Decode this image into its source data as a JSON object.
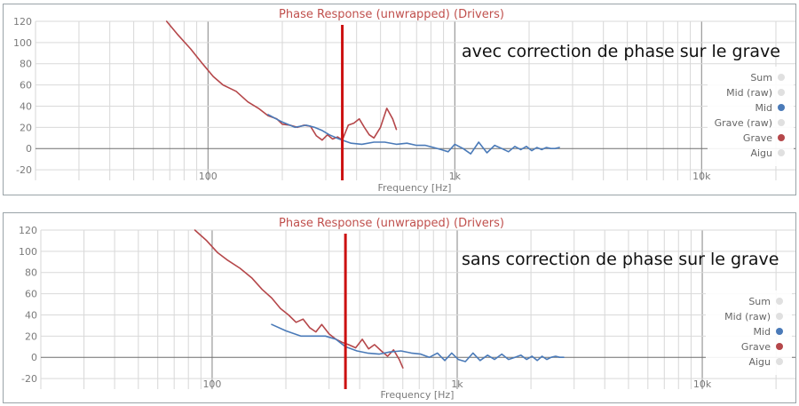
{
  "chart_data": [
    {
      "type": "line",
      "title": "Phase Response (unwrapped) (Drivers)",
      "xlabel": "Frequency [Hz]",
      "ylabel": "",
      "x_scale": "log",
      "xlim": [
        20,
        24000
      ],
      "ylim": [
        -30,
        120
      ],
      "x_ticks": [
        {
          "value": 100,
          "label": "100"
        },
        {
          "value": 1000,
          "label": "1k"
        },
        {
          "value": 10000,
          "label": "10k"
        }
      ],
      "y_ticks": [
        -20,
        0,
        20,
        40,
        60,
        80,
        100,
        120
      ],
      "grid": true,
      "legend_position": "right",
      "annotation": "avec correction de phase sur le grave",
      "marker_line": {
        "x": 350,
        "color": "#cc1111"
      },
      "legend": [
        {
          "label": "Sum",
          "color": "#e0e0e0"
        },
        {
          "label": "Mid (raw)",
          "color": "#e0e0e0"
        },
        {
          "label": "Mid",
          "color": "#4a7ab8"
        },
        {
          "label": "Grave (raw)",
          "color": "#e0e0e0"
        },
        {
          "label": "Grave",
          "color": "#b5474a"
        },
        {
          "label": "Aigu",
          "color": "#e0e0e0"
        }
      ],
      "series": [
        {
          "name": "Grave",
          "color": "#b5474a",
          "x": [
            68,
            75,
            85,
            95,
            105,
            115,
            130,
            145,
            160,
            175,
            190,
            200,
            215,
            230,
            245,
            260,
            275,
            290,
            305,
            320,
            335,
            350,
            370,
            390,
            410,
            430,
            450,
            470,
            500,
            530,
            560,
            580
          ],
          "y": [
            120,
            108,
            94,
            80,
            68,
            60,
            54,
            44,
            38,
            31,
            28,
            23,
            22,
            20,
            22,
            21,
            12,
            8,
            13,
            9,
            11,
            8,
            22,
            24,
            28,
            20,
            13,
            10,
            20,
            38,
            28,
            18
          ]
        },
        {
          "name": "Mid",
          "color": "#4a7ab8",
          "x": [
            175,
            200,
            225,
            250,
            270,
            290,
            310,
            340,
            380,
            420,
            470,
            520,
            580,
            640,
            700,
            760,
            820,
            880,
            940,
            1000,
            1080,
            1160,
            1250,
            1350,
            1450,
            1550,
            1650,
            1750,
            1850,
            1950,
            2050,
            2150,
            2250,
            2350,
            2450,
            2550,
            2650
          ],
          "y": [
            32,
            25,
            20,
            22,
            20,
            17,
            13,
            9,
            5,
            4,
            6,
            6,
            4,
            5,
            3,
            3,
            1,
            -1,
            -3,
            4,
            0,
            -5,
            6,
            -4,
            3,
            0,
            -3,
            2,
            -1,
            2,
            -2,
            1,
            -1,
            1,
            0,
            0,
            1
          ]
        }
      ]
    },
    {
      "type": "line",
      "title": "Phase Response (unwrapped) (Drivers)",
      "xlabel": "Frequency [Hz]",
      "ylabel": "",
      "x_scale": "log",
      "xlim": [
        20,
        24000
      ],
      "ylim": [
        -30,
        120
      ],
      "x_ticks": [
        {
          "value": 100,
          "label": "100"
        },
        {
          "value": 1000,
          "label": "1k"
        },
        {
          "value": 10000,
          "label": "10k"
        }
      ],
      "y_ticks": [
        -20,
        0,
        20,
        40,
        60,
        80,
        100,
        120
      ],
      "grid": true,
      "legend_position": "right",
      "annotation": "sans correction de phase sur le grave",
      "marker_line": {
        "x": 350,
        "color": "#cc1111"
      },
      "legend": [
        {
          "label": "Sum",
          "color": "#e0e0e0"
        },
        {
          "label": "Mid (raw)",
          "color": "#e0e0e0"
        },
        {
          "label": "Mid",
          "color": "#4a7ab8"
        },
        {
          "label": "Grave",
          "color": "#b5474a"
        },
        {
          "label": "Aigu",
          "color": "#e0e0e0"
        }
      ],
      "series": [
        {
          "name": "Grave",
          "color": "#b5474a",
          "x": [
            85,
            95,
            105,
            115,
            130,
            145,
            160,
            175,
            190,
            205,
            220,
            235,
            250,
            265,
            280,
            300,
            320,
            340,
            360,
            385,
            410,
            435,
            460,
            490,
            520,
            550,
            580,
            600
          ],
          "y": [
            120,
            110,
            99,
            92,
            84,
            75,
            64,
            56,
            46,
            40,
            33,
            36,
            28,
            24,
            31,
            22,
            17,
            14,
            12,
            9,
            17,
            8,
            12,
            6,
            1,
            7,
            -2,
            -10
          ]
        },
        {
          "name": "Mid",
          "color": "#4a7ab8",
          "x": [
            175,
            200,
            230,
            260,
            290,
            320,
            350,
            390,
            430,
            480,
            530,
            590,
            650,
            710,
            770,
            830,
            890,
            950,
            1010,
            1080,
            1160,
            1240,
            1330,
            1420,
            1520,
            1620,
            1720,
            1820,
            1920,
            2020,
            2120,
            2220,
            2320,
            2420,
            2520,
            2620,
            2720
          ],
          "y": [
            31,
            25,
            20,
            20,
            20,
            17,
            10,
            6,
            4,
            3,
            5,
            6,
            4,
            3,
            0,
            4,
            -3,
            4,
            -2,
            -4,
            4,
            -3,
            2,
            -2,
            3,
            -2,
            0,
            2,
            -2,
            1,
            -3,
            1,
            -2,
            0,
            1,
            0,
            0
          ]
        }
      ]
    }
  ]
}
